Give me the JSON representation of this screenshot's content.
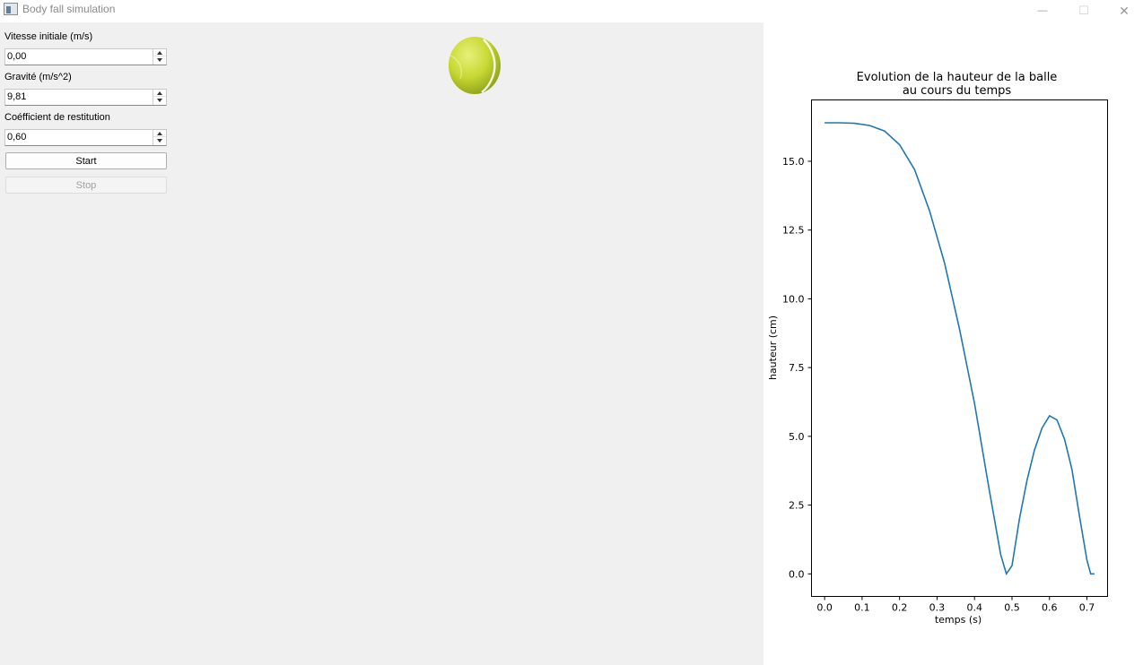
{
  "window": {
    "title": "Body fall simulation",
    "minimize_glyph": "—",
    "maximize_glyph": "☐",
    "close_glyph": "✕"
  },
  "controls": {
    "initial_speed": {
      "label": "Vitesse initiale (m/s)",
      "value": "0,00"
    },
    "gravity": {
      "label": "Gravité (m/s^2)",
      "value": "9,81"
    },
    "restitution": {
      "label": "Coéfficient de restitution",
      "value": "0,60"
    },
    "start_label": "Start",
    "stop_label": "Stop"
  },
  "ball": {
    "icon": "tennis-ball-icon",
    "color": "#c7d934"
  },
  "chart_data": {
    "type": "line",
    "title_lines": [
      "Evolution de la hauteur de la balle",
      "au cours du temps"
    ],
    "xlabel": "temps (s)",
    "ylabel": "hauteur (cm)",
    "xlim": [
      -0.035,
      0.755
    ],
    "ylim": [
      -0.82,
      17.23
    ],
    "xticks": [
      0.0,
      0.1,
      0.2,
      0.3,
      0.4,
      0.5,
      0.6,
      0.7
    ],
    "xtick_labels": [
      "0.0",
      "0.1",
      "0.2",
      "0.3",
      "0.4",
      "0.5",
      "0.6",
      "0.7"
    ],
    "yticks": [
      0.0,
      2.5,
      5.0,
      7.5,
      10.0,
      12.5,
      15.0
    ],
    "ytick_labels": [
      "0.0",
      "2.5",
      "5.0",
      "7.5",
      "10.0",
      "12.5",
      "15.0"
    ],
    "grid": false,
    "series": [
      {
        "color": "#1f77b4",
        "x": [
          0.0,
          0.04,
          0.08,
          0.12,
          0.16,
          0.2,
          0.24,
          0.28,
          0.32,
          0.36,
          0.4,
          0.44,
          0.47,
          0.485,
          0.5,
          0.52,
          0.54,
          0.56,
          0.58,
          0.6,
          0.62,
          0.64,
          0.66,
          0.68,
          0.7,
          0.71,
          0.72
        ],
        "y": [
          16.4,
          16.4,
          16.38,
          16.3,
          16.1,
          15.6,
          14.7,
          13.2,
          11.3,
          8.9,
          6.2,
          3.0,
          0.7,
          0.0,
          0.3,
          2.0,
          3.4,
          4.5,
          5.3,
          5.75,
          5.6,
          4.9,
          3.8,
          2.1,
          0.5,
          0.0,
          0.0
        ]
      }
    ]
  }
}
